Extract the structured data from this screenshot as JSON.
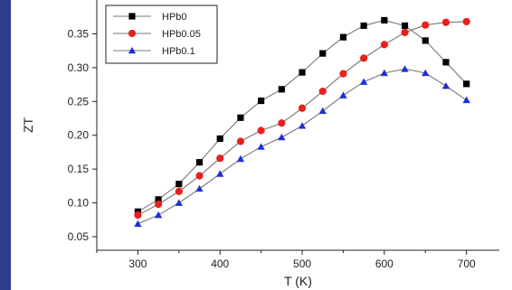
{
  "chart_data": {
    "type": "line",
    "xlabel": "T (K)",
    "ylabel": "ZT",
    "xlim": [
      250,
      740
    ],
    "ylim": [
      0.03,
      0.4
    ],
    "xticks": [
      300,
      400,
      500,
      600,
      700
    ],
    "yticks": [
      0.05,
      0.1,
      0.15,
      0.2,
      0.25,
      0.3,
      0.35
    ],
    "ytick_labels": [
      "0.05",
      "0.10",
      "0.15",
      "0.20",
      "0.25",
      "0.30",
      "0.35"
    ],
    "x": [
      300,
      325,
      350,
      375,
      400,
      425,
      450,
      475,
      500,
      525,
      550,
      575,
      600,
      625,
      650,
      675,
      700
    ],
    "legend_position": "top-left",
    "grid": false,
    "series": [
      {
        "name": "HPb0",
        "marker": "square",
        "color": "#000000",
        "values": [
          0.087,
          0.105,
          0.128,
          0.16,
          0.195,
          0.226,
          0.251,
          0.268,
          0.293,
          0.321,
          0.345,
          0.362,
          0.37,
          0.362,
          0.34,
          0.308,
          0.276
        ]
      },
      {
        "name": "HPb0.05",
        "marker": "circle",
        "color": "#e8201e",
        "values": [
          0.082,
          0.098,
          0.117,
          0.14,
          0.166,
          0.191,
          0.207,
          0.218,
          0.24,
          0.265,
          0.291,
          0.314,
          0.334,
          0.352,
          0.363,
          0.367,
          0.368
        ]
      },
      {
        "name": "HPb0.1",
        "marker": "triangle",
        "color": "#1d2fd6",
        "values": [
          0.069,
          0.082,
          0.1,
          0.121,
          0.143,
          0.165,
          0.183,
          0.197,
          0.214,
          0.236,
          0.259,
          0.279,
          0.292,
          0.298,
          0.292,
          0.273,
          0.252
        ]
      }
    ]
  }
}
